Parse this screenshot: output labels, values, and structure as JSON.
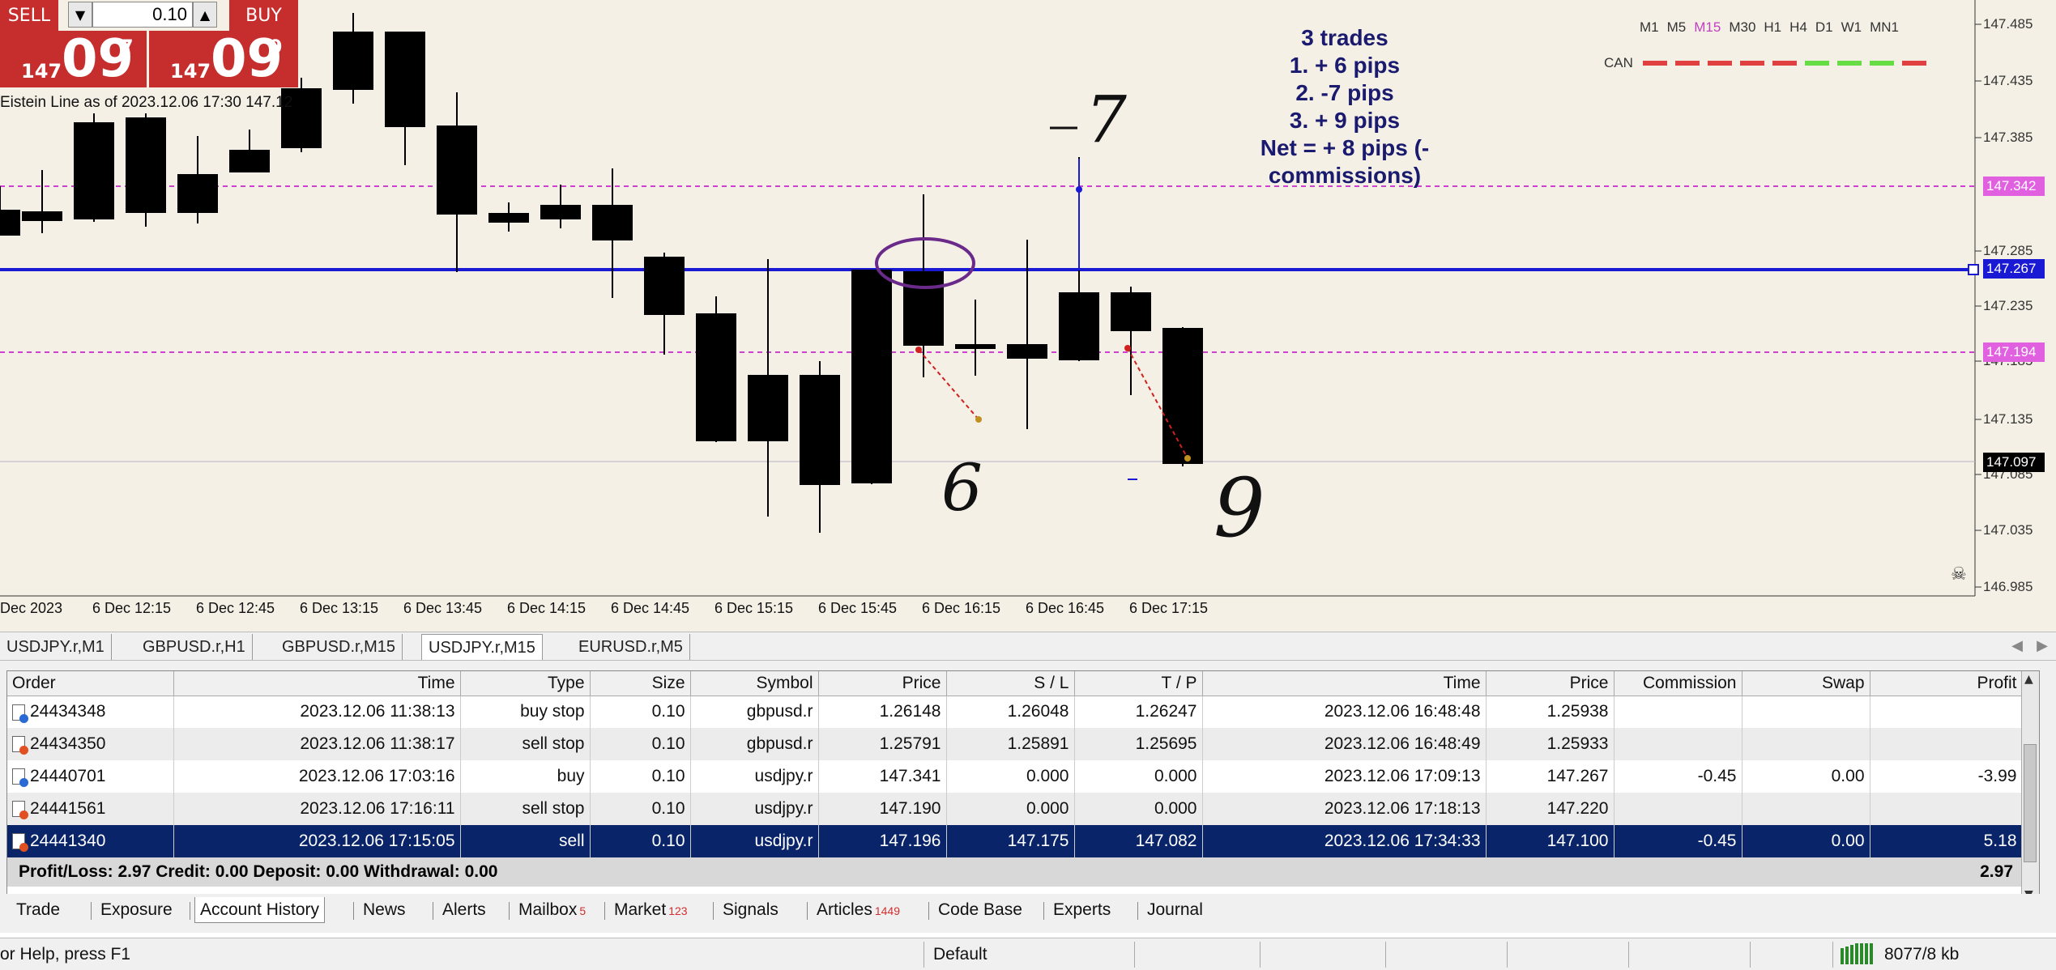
{
  "trade_panel": {
    "sell_label": "SELL",
    "buy_label": "BUY",
    "volume": "0.10",
    "sell_price": {
      "prefix": "147",
      "big": "09",
      "sup": "7"
    },
    "buy_price": {
      "prefix": "147",
      "big": "09",
      "sup": "9"
    }
  },
  "chart": {
    "indicator_label": "Eistein Line as of 2023.12.06 17:30 147.12",
    "timeframes": [
      "M1",
      "M5",
      "M15",
      "M30",
      "H1",
      "H4",
      "D1",
      "W1",
      "MN1"
    ],
    "active_timeframe": "M15",
    "can_label": "CAN",
    "notes": [
      "3 trades",
      "1. + 6 pips",
      "2. -7 pips",
      "3. + 9 pips",
      "Net = + 8 pips (-",
      "commissions)"
    ],
    "price_labels": [
      "147.485",
      "147.435",
      "147.385",
      "147.285",
      "147.235",
      "147.185",
      "147.135",
      "147.085",
      "147.035",
      "146.985"
    ],
    "price_tags": {
      "sl_line": "147.342",
      "blue_line": "147.267",
      "tp_line": "147.194",
      "current": "147.097"
    },
    "time_labels": [
      "Dec 2023",
      "6 Dec 12:15",
      "6 Dec 12:45",
      "6 Dec 13:15",
      "6 Dec 13:45",
      "6 Dec 14:15",
      "6 Dec 14:45",
      "6 Dec 15:15",
      "6 Dec 15:45",
      "6 Dec 16:15",
      "6 Dec 16:45",
      "6 Dec 17:15"
    ],
    "handwritten": [
      "7",
      "6",
      "9"
    ],
    "colors": {
      "background": "#f5f0e6",
      "blue_line": "#1a1ad4",
      "dashed": "#d040d0",
      "current_tag": "#000000",
      "annotation": "#4a2a8a"
    }
  },
  "symbol_tabs": [
    "USDJPY.r,M1",
    "GBPUSD.r,H1",
    "GBPUSD.r,M15",
    "USDJPY.r,M15",
    "EURUSD.r,M5"
  ],
  "active_symbol_tab": "USDJPY.r,M15",
  "history": {
    "columns": [
      "Order",
      "Time",
      "Type",
      "Size",
      "Symbol",
      "Price",
      "S / L",
      "T / P",
      "Time",
      "Price",
      "Commission",
      "Swap",
      "Profit"
    ],
    "rows": [
      {
        "order": "24434348",
        "open_time": "2023.12.06 11:38:13",
        "type": "buy stop",
        "size": "0.10",
        "symbol": "gbpusd.r",
        "price": "1.26148",
        "sl": "1.26048",
        "tp": "1.26247",
        "close_time": "2023.12.06 16:48:48",
        "close_price": "1.25938",
        "commission": "",
        "swap": "",
        "profit": ""
      },
      {
        "order": "24434350",
        "open_time": "2023.12.06 11:38:17",
        "type": "sell stop",
        "size": "0.10",
        "symbol": "gbpusd.r",
        "price": "1.25791",
        "sl": "1.25891",
        "tp": "1.25695",
        "close_time": "2023.12.06 16:48:49",
        "close_price": "1.25933",
        "commission": "",
        "swap": "",
        "profit": ""
      },
      {
        "order": "24440701",
        "open_time": "2023.12.06 17:03:16",
        "type": "buy",
        "size": "0.10",
        "symbol": "usdjpy.r",
        "price": "147.341",
        "sl": "0.000",
        "tp": "0.000",
        "close_time": "2023.12.06 17:09:13",
        "close_price": "147.267",
        "commission": "-0.45",
        "swap": "0.00",
        "profit": "-3.99"
      },
      {
        "order": "24441561",
        "open_time": "2023.12.06 17:16:11",
        "type": "sell stop",
        "size": "0.10",
        "symbol": "usdjpy.r",
        "price": "147.190",
        "sl": "0.000",
        "tp": "0.000",
        "close_time": "2023.12.06 17:18:13",
        "close_price": "147.220",
        "commission": "",
        "swap": "",
        "profit": ""
      },
      {
        "order": "24441340",
        "open_time": "2023.12.06 17:15:05",
        "type": "sell",
        "size": "0.10",
        "symbol": "usdjpy.r",
        "price": "147.196",
        "sl": "147.175",
        "tp": "147.082",
        "close_time": "2023.12.06 17:34:33",
        "close_price": "147.100",
        "commission": "-0.45",
        "swap": "0.00",
        "profit": "5.18"
      }
    ],
    "summary": "Profit/Loss: 2.97  Credit: 0.00  Deposit: 0.00  Withdrawal: 0.00",
    "total": "2.97"
  },
  "bottom_tabs": [
    {
      "label": "Trade",
      "badge": ""
    },
    {
      "label": "Exposure",
      "badge": ""
    },
    {
      "label": "Account History",
      "badge": ""
    },
    {
      "label": "News",
      "badge": ""
    },
    {
      "label": "Alerts",
      "badge": ""
    },
    {
      "label": "Mailbox",
      "badge": "5"
    },
    {
      "label": "Market",
      "badge": "123"
    },
    {
      "label": "Signals",
      "badge": ""
    },
    {
      "label": "Articles",
      "badge": "1449"
    },
    {
      "label": "Code Base",
      "badge": ""
    },
    {
      "label": "Experts",
      "badge": ""
    },
    {
      "label": "Journal",
      "badge": ""
    }
  ],
  "active_bottom_tab": "Account History",
  "status_bar": {
    "help": "or Help, press F1",
    "profile": "Default",
    "traffic": "8077/8 kb"
  }
}
